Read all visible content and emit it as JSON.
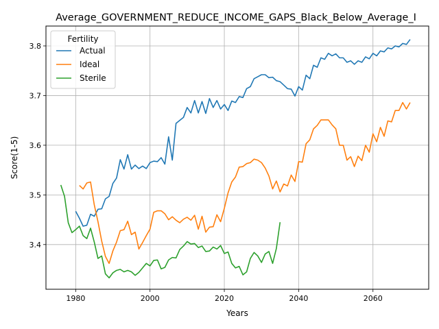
{
  "chart_data": {
    "type": "line",
    "title": "Average_GOVERNMENT_REDUCE_INCOME_GAPS_Black_Below_Average_I",
    "xlabel": "Years",
    "ylabel": "Score(1-5)",
    "xlim": [
      1972,
      2075
    ],
    "ylim": [
      3.31,
      3.84
    ],
    "xticks": [
      1980,
      2000,
      2020,
      2040,
      2060
    ],
    "yticks": [
      3.4,
      3.5,
      3.6,
      3.7,
      3.8
    ],
    "grid": true,
    "legend": {
      "title": "Fertility",
      "placement": "top-left"
    },
    "series": [
      {
        "name": "Actual",
        "color": "#1f77b4",
        "x": [
          1980,
          1981,
          1982,
          1983,
          1984,
          1985,
          1986,
          1987,
          1988,
          1989,
          1990,
          1991,
          1992,
          1993,
          1994,
          1995,
          1996,
          1997,
          1998,
          1999,
          2000,
          2001,
          2002,
          2003,
          2004,
          2005,
          2006,
          2007,
          2008,
          2009,
          2010,
          2011,
          2012,
          2013,
          2014,
          2015,
          2016,
          2017,
          2018,
          2019,
          2020,
          2021,
          2022,
          2023,
          2024,
          2025,
          2026,
          2027,
          2028,
          2029,
          2030,
          2031,
          2032,
          2033,
          2034,
          2035,
          2036,
          2037,
          2038,
          2039,
          2040,
          2041,
          2042,
          2043,
          2044,
          2045,
          2046,
          2047,
          2048,
          2049,
          2050,
          2051,
          2052,
          2053,
          2054,
          2055,
          2056,
          2057,
          2058,
          2059,
          2060,
          2061,
          2062,
          2063,
          2064,
          2065,
          2066,
          2067,
          2068,
          2069,
          2070
        ],
        "values": [
          3.467,
          3.453,
          3.437,
          3.439,
          3.461,
          3.457,
          3.471,
          3.472,
          3.492,
          3.497,
          3.523,
          3.534,
          3.571,
          3.552,
          3.581,
          3.552,
          3.56,
          3.553,
          3.558,
          3.553,
          3.565,
          3.568,
          3.567,
          3.575,
          3.562,
          3.617,
          3.57,
          3.644,
          3.65,
          3.656,
          3.676,
          3.665,
          3.69,
          3.665,
          3.688,
          3.664,
          3.694,
          3.676,
          3.69,
          3.673,
          3.682,
          3.67,
          3.689,
          3.686,
          3.698,
          3.696,
          3.714,
          3.718,
          3.734,
          3.738,
          3.742,
          3.742,
          3.736,
          3.737,
          3.73,
          3.728,
          3.721,
          3.714,
          3.713,
          3.699,
          3.718,
          3.711,
          3.741,
          3.734,
          3.761,
          3.757,
          3.776,
          3.773,
          3.785,
          3.78,
          3.784,
          3.776,
          3.776,
          3.767,
          3.77,
          3.763,
          3.77,
          3.767,
          3.778,
          3.774,
          3.785,
          3.78,
          3.79,
          3.788,
          3.796,
          3.794,
          3.8,
          3.798,
          3.805,
          3.803,
          3.813
        ]
      },
      {
        "name": "Ideal",
        "color": "#ff7f0e",
        "x": [
          1981,
          1982,
          1983,
          1984,
          1985,
          1986,
          1987,
          1988,
          1989,
          1990,
          1991,
          1992,
          1993,
          1994,
          1995,
          1996,
          1997,
          1998,
          1999,
          2000,
          2001,
          2002,
          2003,
          2004,
          2005,
          2006,
          2007,
          2008,
          2009,
          2010,
          2011,
          2012,
          2013,
          2014,
          2015,
          2016,
          2017,
          2018,
          2019,
          2020,
          2021,
          2022,
          2023,
          2024,
          2025,
          2026,
          2027,
          2028,
          2029,
          2030,
          2031,
          2032,
          2033,
          2034,
          2035,
          2036,
          2037,
          2038,
          2039,
          2040,
          2041,
          2042,
          2043,
          2044,
          2045,
          2046,
          2047,
          2048,
          2049,
          2050,
          2051,
          2052,
          2053,
          2054,
          2055,
          2056,
          2057,
          2058,
          2059,
          2060,
          2061,
          2062,
          2063,
          2064,
          2065,
          2066,
          2067,
          2068,
          2069,
          2070
        ],
        "values": [
          3.519,
          3.512,
          3.524,
          3.526,
          3.48,
          3.446,
          3.407,
          3.376,
          3.362,
          3.387,
          3.405,
          3.428,
          3.43,
          3.447,
          3.42,
          3.425,
          3.391,
          3.404,
          3.418,
          3.431,
          3.465,
          3.468,
          3.468,
          3.462,
          3.45,
          3.456,
          3.449,
          3.444,
          3.451,
          3.455,
          3.449,
          3.459,
          3.431,
          3.457,
          3.425,
          3.435,
          3.436,
          3.46,
          3.446,
          3.473,
          3.504,
          3.526,
          3.536,
          3.556,
          3.557,
          3.563,
          3.565,
          3.572,
          3.57,
          3.565,
          3.554,
          3.538,
          3.512,
          3.528,
          3.506,
          3.522,
          3.518,
          3.54,
          3.527,
          3.567,
          3.566,
          3.603,
          3.611,
          3.633,
          3.64,
          3.651,
          3.651,
          3.651,
          3.641,
          3.633,
          3.6,
          3.6,
          3.57,
          3.577,
          3.557,
          3.578,
          3.569,
          3.6,
          3.586,
          3.623,
          3.607,
          3.636,
          3.618,
          3.649,
          3.647,
          3.67,
          3.67,
          3.686,
          3.673,
          3.686
        ]
      },
      {
        "name": "Sterile",
        "color": "#2ca02c",
        "x": [
          1976,
          1977,
          1978,
          1979,
          1980,
          1981,
          1982,
          1983,
          1984,
          1985,
          1986,
          1987,
          1988,
          1989,
          1990,
          1991,
          1992,
          1993,
          1994,
          1995,
          1996,
          1997,
          1998,
          1999,
          2000,
          2001,
          2002,
          2003,
          2004,
          2005,
          2006,
          2007,
          2008,
          2009,
          2010,
          2011,
          2012,
          2013,
          2014,
          2015,
          2016,
          2017,
          2018,
          2019,
          2020,
          2021,
          2022,
          2023,
          2024,
          2025,
          2026,
          2027,
          2028,
          2029,
          2030,
          2031,
          2032,
          2033,
          2034,
          2035
        ],
        "values": [
          3.52,
          3.497,
          3.444,
          3.424,
          3.43,
          3.437,
          3.418,
          3.412,
          3.433,
          3.405,
          3.372,
          3.377,
          3.341,
          3.333,
          3.343,
          3.348,
          3.35,
          3.345,
          3.348,
          3.345,
          3.338,
          3.344,
          3.353,
          3.362,
          3.357,
          3.368,
          3.369,
          3.351,
          3.354,
          3.369,
          3.374,
          3.373,
          3.39,
          3.397,
          3.406,
          3.401,
          3.402,
          3.394,
          3.397,
          3.386,
          3.387,
          3.395,
          3.391,
          3.398,
          3.382,
          3.385,
          3.362,
          3.353,
          3.356,
          3.339,
          3.345,
          3.372,
          3.384,
          3.377,
          3.364,
          3.381,
          3.386,
          3.362,
          3.392,
          3.445
        ]
      }
    ]
  }
}
